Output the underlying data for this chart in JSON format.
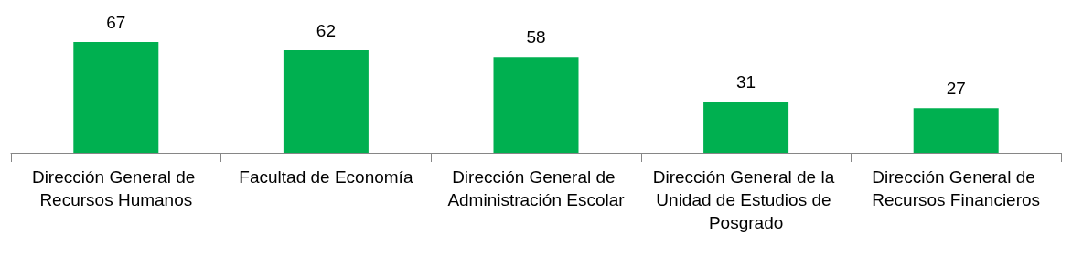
{
  "chart_data": {
    "type": "bar",
    "categories": [
      "Dirección General de Recursos Humanos",
      "Facultad de Economía",
      "Dirección General de Administración Escolar",
      "Dirección General de la Unidad de Estudios de Posgrado",
      "Dirección General de Recursos Financieros"
    ],
    "values": [
      67,
      62,
      58,
      31,
      27
    ],
    "color": "#00b050",
    "data_labels": true
  }
}
